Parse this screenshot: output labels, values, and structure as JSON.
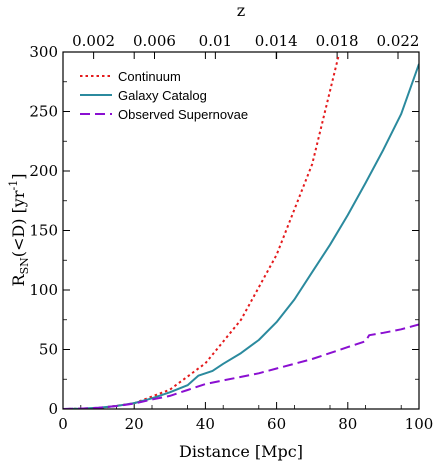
{
  "chart_data": {
    "type": "line",
    "xlabel": "Distance [Mpc]",
    "top_axis_label": "z",
    "ylabel_main": "R",
    "ylabel_sub": "SN",
    "ylabel_rest": "(<D) [yr",
    "ylabel_sup": "-1",
    "ylabel_end": "]",
    "xlim": [
      0,
      100
    ],
    "ylim": [
      0,
      300
    ],
    "x_ticks": [
      "0",
      "20",
      "40",
      "60",
      "80",
      "100"
    ],
    "y_ticks": [
      "0",
      "50",
      "100",
      "150",
      "200",
      "250",
      "300"
    ],
    "top_ticks": [
      {
        "label": "0.002",
        "distance": 8.6
      },
      {
        "label": "0.006",
        "distance": 25.7
      },
      {
        "label": "0.01",
        "distance": 42.8
      },
      {
        "label": "0.014",
        "distance": 59.9
      },
      {
        "label": "0.018",
        "distance": 77.0
      },
      {
        "label": "0.022",
        "distance": 94.1
      }
    ],
    "grid": false,
    "legend_position": "top-left",
    "series": [
      {
        "name": "Continuum",
        "color": "#e41a1c",
        "style": "dotted",
        "x": [
          0,
          10,
          20,
          30,
          40,
          50,
          60,
          70,
          77.5
        ],
        "y": [
          0,
          0.6,
          4.8,
          16.2,
          38.4,
          75,
          129.6,
          205.8,
          298
        ]
      },
      {
        "name": "Galaxy Catalog",
        "color": "#2b8a9e",
        "style": "solid",
        "x": [
          0,
          5,
          10,
          15,
          20,
          25,
          30,
          35,
          38,
          42,
          45,
          50,
          55,
          60,
          65,
          70,
          75,
          80,
          85,
          90,
          95,
          100
        ],
        "y": [
          0,
          0.3,
          1,
          2.5,
          5,
          9,
          14,
          20,
          28,
          32,
          38,
          47,
          58,
          73,
          92,
          115,
          138,
          163,
          190,
          218,
          248,
          290
        ]
      },
      {
        "name": "Observed Supernovae",
        "color": "#8a0fd1",
        "style": "dashed",
        "x": [
          0,
          5,
          10,
          15,
          20,
          25,
          30,
          35,
          40,
          45,
          50,
          55,
          60,
          65,
          70,
          75,
          80,
          85,
          86,
          90,
          95,
          100
        ],
        "y": [
          0,
          0.3,
          1,
          2.5,
          4.5,
          8,
          11,
          16,
          21,
          24,
          27,
          30,
          34,
          38,
          42,
          47,
          52,
          57,
          62,
          64,
          67,
          71
        ]
      }
    ]
  }
}
